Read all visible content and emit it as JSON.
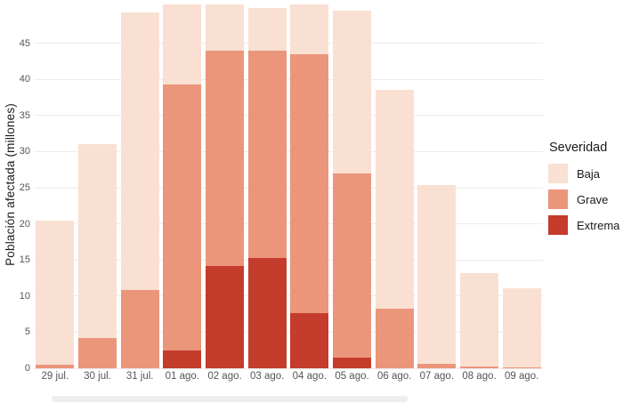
{
  "chart_data": {
    "type": "bar",
    "stacked": true,
    "title": "",
    "xlabel": "",
    "ylabel": "Población afectada (millones)",
    "legend_title": "Severidad",
    "legend_position": "right",
    "grid": "horizontal-major",
    "categories": [
      "29 jul.",
      "30 jul.",
      "31 jul.",
      "01 ago.",
      "02 ago.",
      "03 ago.",
      "04 ago.",
      "05 ago.",
      "06 ago.",
      "07 ago.",
      "08 ago.",
      "09 ago."
    ],
    "series": [
      {
        "name": "Baja",
        "color": "#F9E0D2",
        "values": [
          20.0,
          26.9,
          38.5,
          11.1,
          6.4,
          5.9,
          6.9,
          22.5,
          30.2,
          24.8,
          13.0,
          11.0
        ]
      },
      {
        "name": "Grave",
        "color": "#EB957A",
        "values": [
          0.5,
          4.2,
          10.8,
          36.8,
          29.8,
          28.7,
          35.9,
          25.5,
          8.3,
          0.6,
          0.2,
          0.1
        ]
      },
      {
        "name": "Extrema",
        "color": "#C43C2C",
        "values": [
          0,
          0,
          0,
          2.5,
          14.2,
          15.3,
          7.6,
          1.5,
          0,
          0,
          0,
          0
        ]
      }
    ],
    "stack_order_bottom_to_top": [
      "Extrema",
      "Grave",
      "Baja"
    ],
    "totals": [
      20.5,
      31.1,
      49.3,
      50.4,
      50.4,
      49.9,
      50.4,
      49.5,
      38.5,
      25.4,
      13.2,
      11.1
    ],
    "ylim": [
      0,
      51
    ],
    "yticks": [
      0,
      5,
      10,
      15,
      20,
      25,
      30,
      35,
      40,
      45
    ]
  },
  "colors": {
    "background": "#FFFFFF",
    "gridline": "#ECECEC",
    "axis_text": "#555555",
    "title_text": "#1A1A1A"
  }
}
